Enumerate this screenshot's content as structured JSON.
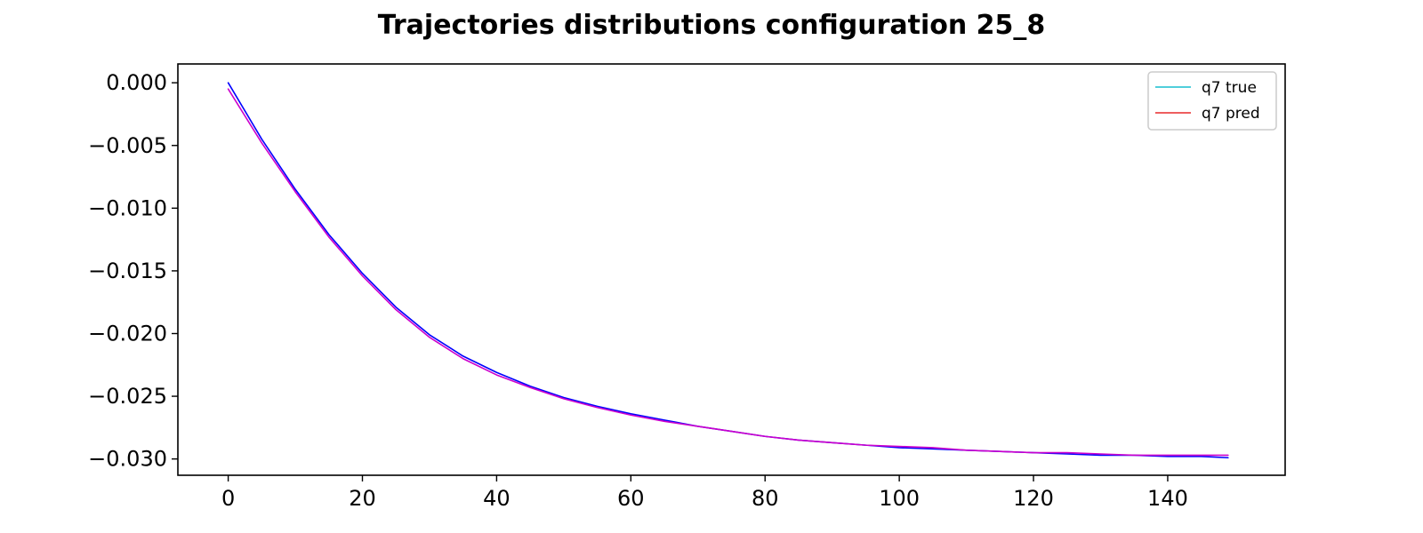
{
  "chart_data": {
    "type": "line",
    "title": "Trajectories distributions configuration  25_8",
    "xlabel": "",
    "ylabel": "",
    "xlim": [
      -7.5,
      157.5
    ],
    "ylim": [
      -0.0313,
      0.0015
    ],
    "xticks": [
      0,
      20,
      40,
      60,
      80,
      100,
      120,
      140
    ],
    "xtick_labels": [
      "0",
      "20",
      "40",
      "60",
      "80",
      "100",
      "120",
      "140"
    ],
    "yticks": [
      0.0,
      -0.005,
      -0.01,
      -0.015,
      -0.02,
      -0.025,
      -0.03
    ],
    "ytick_labels": [
      "0.000",
      "−0.005",
      "−0.010",
      "−0.015",
      "−0.020",
      "−0.025",
      "−0.030"
    ],
    "grid": false,
    "legend_position": "top-right",
    "legend": [
      {
        "label": "q7 true",
        "color": "#17becf"
      },
      {
        "label": "q7 pred",
        "color": "#e8282a"
      }
    ],
    "series": [
      {
        "name": "q7 true",
        "color": "#0000ff",
        "x": [
          0,
          5,
          10,
          15,
          20,
          25,
          30,
          35,
          40,
          45,
          50,
          55,
          60,
          65,
          70,
          75,
          80,
          85,
          90,
          95,
          100,
          105,
          110,
          115,
          120,
          125,
          130,
          135,
          140,
          145,
          149
        ],
        "y": [
          0.0,
          -0.0045,
          -0.0085,
          -0.0121,
          -0.0152,
          -0.0179,
          -0.0201,
          -0.0218,
          -0.0231,
          -0.0242,
          -0.0251,
          -0.0258,
          -0.0264,
          -0.0269,
          -0.0274,
          -0.0278,
          -0.0282,
          -0.0285,
          -0.0287,
          -0.0289,
          -0.0291,
          -0.0292,
          -0.0293,
          -0.0294,
          -0.0295,
          -0.0296,
          -0.0297,
          -0.0297,
          -0.0298,
          -0.0298,
          -0.0299
        ]
      },
      {
        "name": "q7 pred",
        "color": "#cc00cc",
        "x": [
          0,
          5,
          10,
          15,
          20,
          25,
          30,
          35,
          40,
          45,
          50,
          55,
          60,
          65,
          70,
          75,
          80,
          85,
          90,
          95,
          100,
          105,
          110,
          115,
          120,
          125,
          130,
          135,
          140,
          145,
          149
        ],
        "y": [
          -0.0005,
          -0.0048,
          -0.0087,
          -0.0123,
          -0.0154,
          -0.0181,
          -0.0203,
          -0.022,
          -0.0233,
          -0.0243,
          -0.0252,
          -0.0259,
          -0.0265,
          -0.027,
          -0.0274,
          -0.0278,
          -0.0282,
          -0.0285,
          -0.0287,
          -0.0289,
          -0.029,
          -0.0291,
          -0.0293,
          -0.0294,
          -0.0295,
          -0.0295,
          -0.0296,
          -0.0297,
          -0.0297,
          -0.0297,
          -0.0297
        ]
      }
    ]
  }
}
